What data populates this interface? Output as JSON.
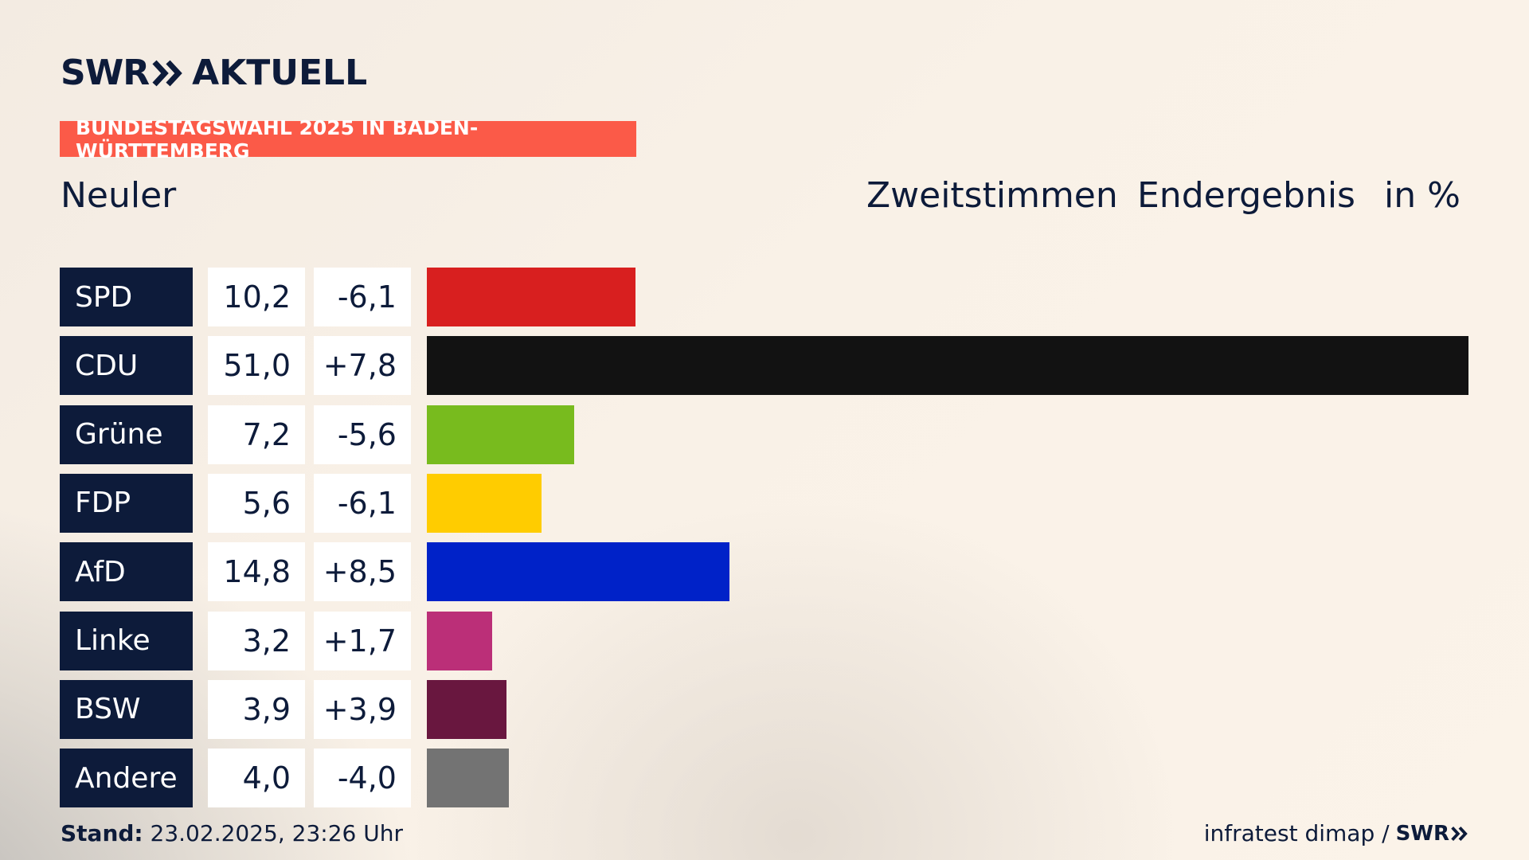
{
  "brand": {
    "swr": "SWR",
    "aktuell": "AKTUELL"
  },
  "banner": "BUNDESTAGSWAHL 2025 IN BADEN-WÜRTTEMBERG",
  "location": "Neuler",
  "header": {
    "vote_type": "Zweitstimmen",
    "status": "Endergebnis",
    "unit": "in %"
  },
  "chart_data": {
    "type": "bar",
    "orientation": "horizontal",
    "categories": [
      "SPD",
      "CDU",
      "Grüne",
      "FDP",
      "AfD",
      "Linke",
      "BSW",
      "Andere"
    ],
    "values": [
      10.2,
      51.0,
      7.2,
      5.6,
      14.8,
      3.2,
      3.9,
      4.0
    ],
    "value_labels": [
      "10,2",
      "51,0",
      "7,2",
      "5,6",
      "14,8",
      "3,2",
      "3,9",
      "4,0"
    ],
    "changes": [
      -6.1,
      7.8,
      -5.6,
      -6.1,
      8.5,
      1.7,
      3.9,
      -4.0
    ],
    "change_labels": [
      "-6,1",
      "+7,8",
      "-5,6",
      "-6,1",
      "+8,5",
      "+1,7",
      "+3,9",
      "-4,0"
    ],
    "colors": [
      "#d81f1f",
      "#121212",
      "#78bb1e",
      "#ffcc00",
      "#0022c8",
      "#bb2f78",
      "#69173f",
      "#737373"
    ],
    "xlim": [
      0,
      51.0
    ]
  },
  "footer": {
    "stand_label": "Stand:",
    "stand_value": "23.02.2025, 23:26 Uhr",
    "source": "infratest dimap /",
    "source_logo": "SWR"
  }
}
